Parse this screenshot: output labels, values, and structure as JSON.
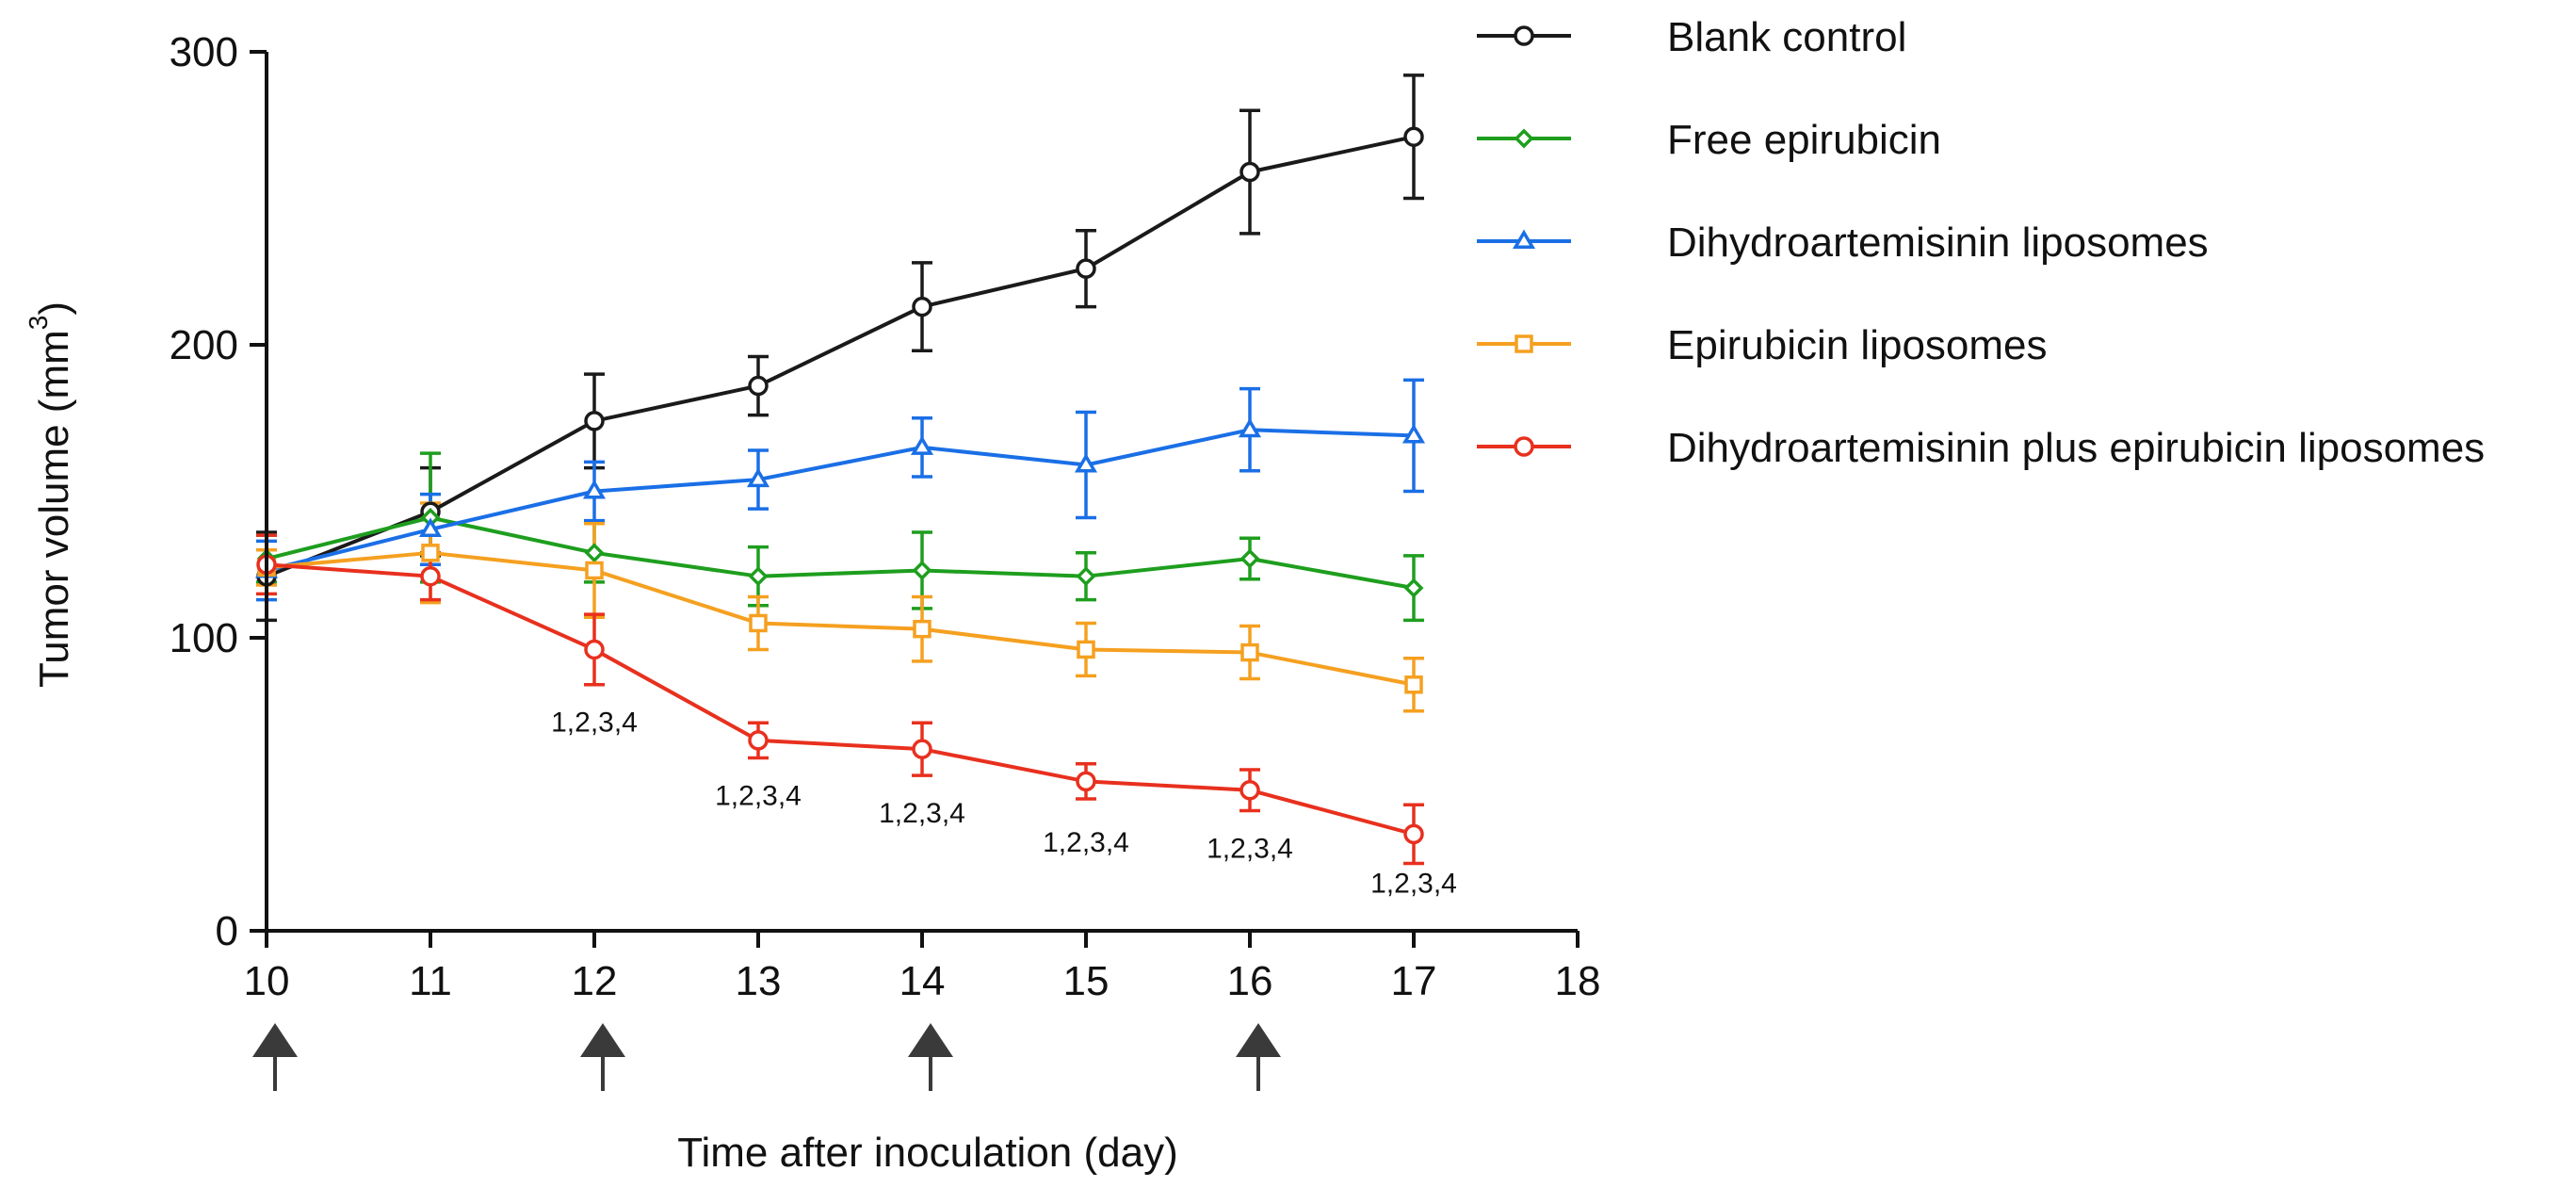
{
  "chart_data": {
    "type": "line",
    "title": "",
    "xlabel": "Time after inoculation (day)",
    "ylabel": "Tumor volume (mm",
    "ylabel_superscript": "3",
    "ylabel_close": ")",
    "xlim": [
      10,
      18
    ],
    "ylim": [
      0,
      300
    ],
    "xticks": [
      10,
      11,
      12,
      13,
      14,
      15,
      16,
      17,
      18
    ],
    "yticks": [
      0,
      100,
      200,
      300
    ],
    "grid": false,
    "legend_position": "top-right",
    "series": [
      {
        "name": "Blank control",
        "color": "#1a1a1a",
        "marker": "circle",
        "x": [
          10,
          11,
          12,
          13,
          14,
          15,
          16,
          17
        ],
        "y": [
          121,
          143,
          174,
          186,
          213,
          226,
          259,
          271
        ],
        "err": [
          15,
          15,
          16,
          10,
          15,
          13,
          21,
          21
        ]
      },
      {
        "name": "Free epirubicin",
        "color": "#1e9e1e",
        "marker": "diamond",
        "x": [
          10,
          11,
          12,
          13,
          14,
          15,
          16,
          17
        ],
        "y": [
          127,
          141,
          129,
          121,
          123,
          121,
          127,
          117
        ],
        "err": [
          8,
          22,
          10,
          10,
          13,
          8,
          7,
          11
        ]
      },
      {
        "name": "Dihydroartemisinin liposomes",
        "color": "#1a6fe6",
        "marker": "triangle",
        "x": [
          10,
          11,
          12,
          13,
          14,
          15,
          16,
          17
        ],
        "y": [
          123,
          137,
          150,
          154,
          165,
          159,
          171,
          169
        ],
        "err": [
          10,
          12,
          10,
          10,
          10,
          18,
          14,
          19
        ]
      },
      {
        "name": "Epirubicin liposomes",
        "color": "#f5a020",
        "marker": "square",
        "x": [
          10,
          11,
          12,
          13,
          14,
          15,
          16,
          17
        ],
        "y": [
          124,
          129,
          123,
          105,
          103,
          96,
          95,
          84
        ],
        "err": [
          6,
          17,
          16,
          9,
          11,
          9,
          9,
          9
        ]
      },
      {
        "name": "Dihydroartemisinin plus epirubicin liposomes",
        "color": "#e8301e",
        "marker": "circle",
        "x": [
          10,
          11,
          12,
          13,
          14,
          15,
          16,
          17
        ],
        "y": [
          125,
          121,
          96,
          65,
          62,
          51,
          48,
          33
        ],
        "err": [
          10,
          8,
          12,
          6,
          9,
          6,
          7,
          10
        ]
      }
    ],
    "significance_labels": [
      {
        "x": 12,
        "y": 68,
        "text": "1,2,3,4"
      },
      {
        "x": 13,
        "y": 43,
        "text": "1,2,3,4"
      },
      {
        "x": 14,
        "y": 37,
        "text": "1,2,3,4"
      },
      {
        "x": 15,
        "y": 27,
        "text": "1,2,3,4"
      },
      {
        "x": 16,
        "y": 25,
        "text": "1,2,3,4"
      },
      {
        "x": 17,
        "y": 13,
        "text": "1,2,3,4"
      }
    ],
    "dosing_days": [
      10,
      12,
      14,
      16
    ]
  }
}
